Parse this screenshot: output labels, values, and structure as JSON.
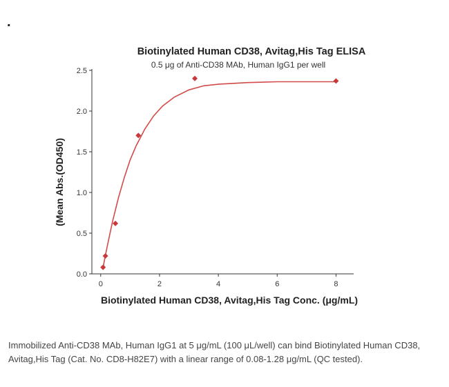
{
  "page": {
    "bullet": "."
  },
  "chart_data": {
    "type": "scatter",
    "title": "Biotinylated Human CD38, Avitag,His Tag ELISA",
    "subtitle": "0.5 μg of Anti-CD38 MAb, Human IgG1 per well",
    "xlabel": "Biotinylated Human CD38, Avitag,His Tag Conc. (μg/mL)",
    "ylabel": "(Mean Abs.(OD450)",
    "xlim": [
      -0.3,
      8.6
    ],
    "ylim": [
      0,
      2.5
    ],
    "x_ticks": [
      0,
      2,
      4,
      6,
      8
    ],
    "y_ticks": [
      0.0,
      0.5,
      1.0,
      1.5,
      2.0,
      2.5
    ],
    "x_tick_labels": [
      "0",
      "2",
      "4",
      "6",
      "8"
    ],
    "y_tick_labels": [
      "0.0",
      "0.5",
      "1.0",
      "1.5",
      "2.0",
      "2.5"
    ],
    "grid": false,
    "legend": "none",
    "series": [
      {
        "marker": "diamond",
        "color": "#c8393b",
        "points": [
          {
            "x": 0.08,
            "y": 0.08
          },
          {
            "x": 0.16,
            "y": 0.22
          },
          {
            "x": 0.5,
            "y": 0.62
          },
          {
            "x": 1.28,
            "y": 1.7
          },
          {
            "x": 3.2,
            "y": 2.4
          },
          {
            "x": 8.0,
            "y": 2.37
          }
        ],
        "fit": {
          "style": "solid",
          "color": "#d24a48",
          "x": [
            0.08,
            0.2,
            0.4,
            0.6,
            0.8,
            1.0,
            1.2,
            1.5,
            1.8,
            2.1,
            2.5,
            3.0,
            3.5,
            4.0,
            5.0,
            6.0,
            7.0,
            8.0
          ],
          "y": [
            0.08,
            0.3,
            0.64,
            0.93,
            1.18,
            1.4,
            1.57,
            1.78,
            1.94,
            2.06,
            2.17,
            2.26,
            2.31,
            2.33,
            2.35,
            2.36,
            2.36,
            2.36
          ]
        }
      }
    ]
  },
  "caption": "Immobilized Anti-CD38 MAb, Human IgG1 at 5 μg/mL (100 μL/well) can bind Biotinylated Human CD38, Avitag,His Tag (Cat. No. CD8-H82E7) with a linear range of 0.08-1.28 μg/mL (QC tested)."
}
